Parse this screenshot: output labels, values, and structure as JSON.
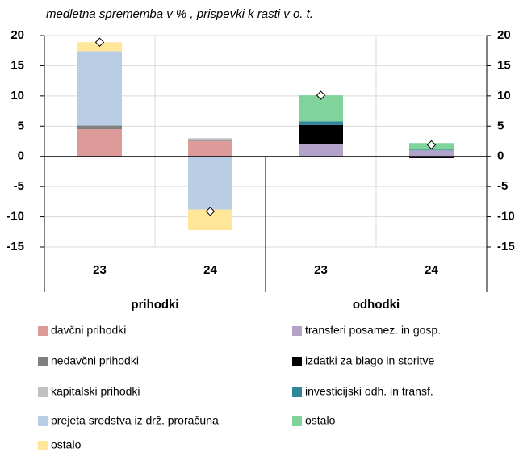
{
  "chart_data": {
    "type": "stacked-bar",
    "title": "medletna sprememba v % , prispevki k rasti v o. t.",
    "categories": [
      "23",
      "24",
      "23",
      "24"
    ],
    "groups": [
      {
        "label": "prihodki",
        "span": 2
      },
      {
        "label": "odhodki",
        "span": 2
      }
    ],
    "series": [
      {
        "name": "davčni prihodki",
        "color": "#dc9a98",
        "values": [
          4.5,
          2.5,
          null,
          null
        ]
      },
      {
        "name": "nedavčni prihodki",
        "color": "#808080",
        "values": [
          0.6,
          0.1,
          null,
          null
        ]
      },
      {
        "name": "kapitalski prihodki",
        "color": "#bfbfbf",
        "values": [
          0,
          0.4,
          null,
          null
        ]
      },
      {
        "name": "prejeta sredstva iz drž. proračuna",
        "color": "#b9cde5",
        "values": [
          12.3,
          -8.8,
          null,
          null
        ]
      },
      {
        "name": "ostalo",
        "color": "#ffe699",
        "values": [
          1.5,
          -3.4,
          null,
          null
        ]
      },
      {
        "name": "transferi posamez. in gosp.",
        "color": "#b3a2c7",
        "values": [
          null,
          null,
          2.1,
          1.0
        ]
      },
      {
        "name": "izdatki za blago in storitve",
        "color": "#000000",
        "values": [
          null,
          null,
          3.1,
          -0.3
        ]
      },
      {
        "name": "investicijski odh. in transf.",
        "color": "#31859c",
        "values": [
          null,
          null,
          0.6,
          0.1
        ]
      },
      {
        "name": "ostalo",
        "color": "#7fd39b",
        "values": [
          null,
          null,
          4.3,
          1.1
        ]
      }
    ],
    "markers": [
      18.9,
      -9.1,
      10.1,
      1.9
    ],
    "ylim": [
      -15,
      20
    ],
    "yticks": [
      -15,
      -10,
      -5,
      0,
      5,
      10,
      15,
      20
    ],
    "grid": true
  }
}
